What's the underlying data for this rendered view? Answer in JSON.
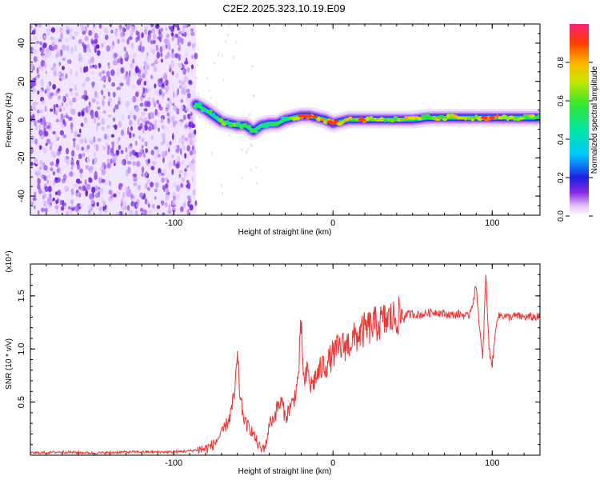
{
  "title": "C2E2.2025.323.10.19.E09",
  "chart_data": [
    {
      "type": "heatmap",
      "name": "spectrogram",
      "xlabel": "Height of straight line (km)",
      "ylabel": "Frequency (Hz)",
      "xlim": [
        -190,
        130
      ],
      "ylim": [
        -50,
        50
      ],
      "x_ticks": [
        -100,
        0,
        100
      ],
      "x_tick_labels": [
        "-100",
        "0",
        "100"
      ],
      "y_ticks": [
        -40,
        -20,
        0,
        20,
        40
      ],
      "y_tick_labels": [
        "-40",
        "-20",
        "0",
        "20",
        "40"
      ],
      "noise_region_x": [
        -190,
        -86
      ],
      "signal_start_x": -86,
      "ridge": {
        "x": [
          -86,
          -80,
          -75,
          -70,
          -65,
          -60,
          -55,
          -50,
          -45,
          -40,
          -35,
          -30,
          -25,
          -20,
          -15,
          -10,
          -5,
          0,
          10,
          20,
          30,
          40,
          50,
          60,
          70,
          80,
          90,
          100,
          110,
          120,
          130
        ],
        "freq": [
          8,
          5,
          2,
          -1,
          -2,
          -3,
          -3,
          -6,
          -3,
          -2,
          -2,
          0,
          1,
          2,
          2,
          1,
          0,
          -2,
          0,
          0,
          0,
          0,
          0,
          1,
          1,
          1,
          1,
          1,
          1,
          1,
          1
        ],
        "amplitude": [
          0.6,
          0.5,
          0.45,
          0.55,
          0.5,
          0.6,
          0.45,
          0.6,
          0.5,
          0.45,
          0.55,
          0.5,
          0.7,
          0.85,
          0.9,
          0.8,
          0.75,
          0.9,
          0.65,
          0.8,
          0.65,
          0.7,
          0.7,
          0.65,
          0.7,
          0.75,
          0.7,
          0.85,
          0.65,
          0.6,
          0.55
        ]
      },
      "colorbar": {
        "label": "Normalized spectral amplitude",
        "ticks": [
          0.0,
          0.2,
          0.4,
          0.6,
          0.8
        ],
        "tick_labels": [
          "0.0",
          "0.2",
          "0.4",
          "0.6",
          "0.8"
        ],
        "range": [
          0,
          1
        ]
      }
    },
    {
      "type": "line",
      "name": "snr",
      "xlabel": "Height of straight line (km)",
      "ylabel": "SNR (10 * v/v)",
      "y_multiplier": "(x10⁴)",
      "xlim": [
        -190,
        130
      ],
      "ylim": [
        0,
        1.8
      ],
      "x_ticks": [
        -100,
        0,
        100
      ],
      "x_tick_labels": [
        "-100",
        "0",
        "100"
      ],
      "y_ticks": [
        0.5,
        1.0,
        1.5
      ],
      "y_tick_labels": [
        "0.5",
        "1.0",
        "1.5"
      ],
      "color": "#ee3333",
      "series": [
        {
          "name": "SNR",
          "x": [
            -190,
            -170,
            -150,
            -130,
            -110,
            -100,
            -90,
            -85,
            -80,
            -75,
            -70,
            -65,
            -62,
            -60,
            -58,
            -55,
            -52,
            -50,
            -47,
            -45,
            -42,
            -40,
            -37,
            -35,
            -32,
            -30,
            -27,
            -25,
            -22,
            -20,
            -18,
            -16,
            -14,
            -12,
            -10,
            -8,
            -6,
            -4,
            -2,
            0,
            3,
            6,
            10,
            15,
            20,
            25,
            30,
            35,
            40,
            45,
            50,
            55,
            60,
            65,
            70,
            75,
            80,
            85,
            88,
            90,
            92,
            94,
            96,
            98,
            100,
            103,
            106,
            110,
            115,
            120,
            125,
            130
          ],
          "y": [
            0.02,
            0.03,
            0.02,
            0.03,
            0.03,
            0.03,
            0.04,
            0.05,
            0.06,
            0.1,
            0.2,
            0.35,
            0.55,
            0.9,
            0.5,
            0.3,
            0.25,
            0.2,
            0.1,
            0.05,
            0.1,
            0.3,
            0.35,
            0.45,
            0.5,
            0.35,
            0.45,
            0.5,
            0.7,
            1.2,
            0.65,
            0.8,
            0.65,
            0.7,
            0.75,
            0.8,
            0.85,
            0.85,
            0.9,
            0.95,
            1.0,
            1.02,
            1.05,
            1.12,
            1.18,
            1.22,
            1.25,
            1.28,
            1.3,
            1.32,
            1.33,
            1.32,
            1.34,
            1.35,
            1.33,
            1.32,
            1.33,
            1.3,
            1.45,
            1.6,
            1.2,
            0.9,
            1.7,
            1.0,
            0.85,
            1.3,
            1.32,
            1.3,
            1.31,
            1.3,
            1.3,
            1.3
          ]
        }
      ]
    }
  ]
}
